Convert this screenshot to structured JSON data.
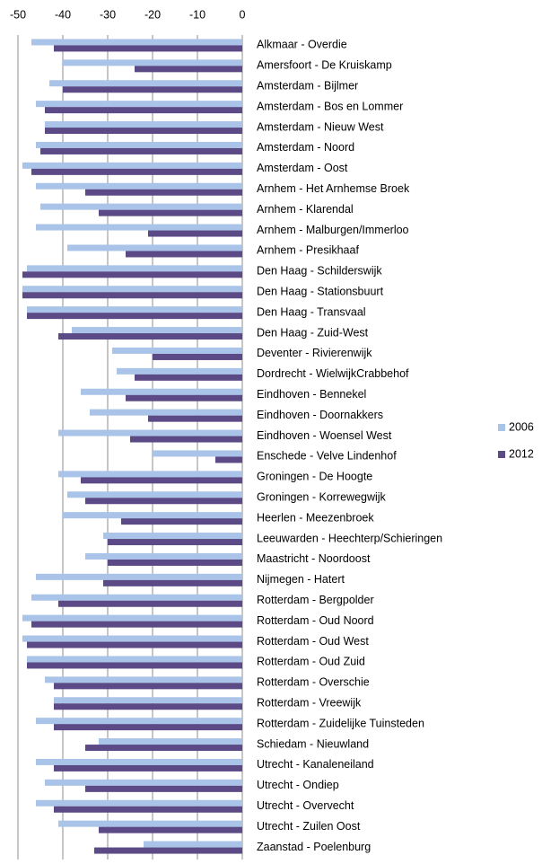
{
  "chart_data": {
    "type": "hbar",
    "categories": [
      "Alkmaar - Overdie",
      "Amersfoort - De Kruiskamp",
      "Amsterdam - Bijlmer",
      "Amsterdam - Bos en Lommer",
      "Amsterdam - Nieuw West",
      "Amsterdam - Noord",
      "Amsterdam - Oost",
      "Arnhem - Het Arnhemse Broek",
      "Arnhem - Klarendal",
      "Arnhem - Malburgen/Immerloo",
      "Arnhem - Presikhaaf",
      "Den Haag - Schilderswijk",
      "Den Haag - Stationsbuurt",
      "Den Haag - Transvaal",
      "Den Haag - Zuid-West",
      "Deventer - Rivierenwijk",
      "Dordrecht - WielwijkCrabbehof",
      "Eindhoven - Bennekel",
      "Eindhoven - Doornakkers",
      "Eindhoven - Woensel West",
      "Enschede - Velve Lindenhof",
      "Groningen - De Hoogte",
      "Groningen - Korrewegwijk",
      "Heerlen - Meezenbroek",
      "Leeuwarden - Heechterp/Schieringen",
      "Maastricht - Noordoost",
      "Nijmegen - Hatert",
      "Rotterdam - Bergpolder",
      "Rotterdam - Oud Noord",
      "Rotterdam - Oud West",
      "Rotterdam - Oud Zuid",
      "Rotterdam - Overschie",
      "Rotterdam - Vreewijk",
      "Rotterdam - Zuidelijke Tuinsteden",
      "Schiedam - Nieuwland",
      "Utrecht - Kanaleneiland",
      "Utrecht - Ondiep",
      "Utrecht - Overvecht",
      "Utrecht - Zuilen Oost",
      "Zaanstad - Poelenburg"
    ],
    "series": [
      {
        "name": "2006",
        "color": "#a9c4e8",
        "values": [
          -47,
          -40,
          -43,
          -46,
          -44,
          -46,
          -49,
          -46,
          -45,
          -46,
          -39,
          -48,
          -49,
          -48,
          -38,
          -29,
          -28,
          -36,
          -34,
          -41,
          -20,
          -41,
          -39,
          -40,
          -31,
          -35,
          -46,
          -47,
          -49,
          -49,
          -48,
          -44,
          -42,
          -46,
          -32,
          -46,
          -44,
          -46,
          -41,
          -22
        ]
      },
      {
        "name": "2012",
        "color": "#5b4a86",
        "values": [
          -42,
          -24,
          -40,
          -44,
          -44,
          -45,
          -47,
          -35,
          -32,
          -21,
          -26,
          -49,
          -49,
          -48,
          -41,
          -20,
          -24,
          -26,
          -21,
          -25,
          -6,
          -36,
          -35,
          -27,
          -30,
          -30,
          -31,
          -41,
          -47,
          -48,
          -48,
          -42,
          -42,
          -42,
          -35,
          -42,
          -35,
          -42,
          -32,
          -33
        ]
      }
    ],
    "xlim": [
      -50,
      0
    ],
    "xticks": [
      -50,
      -40,
      -30,
      -20,
      -10,
      0
    ],
    "grid": true,
    "legend": "right"
  }
}
